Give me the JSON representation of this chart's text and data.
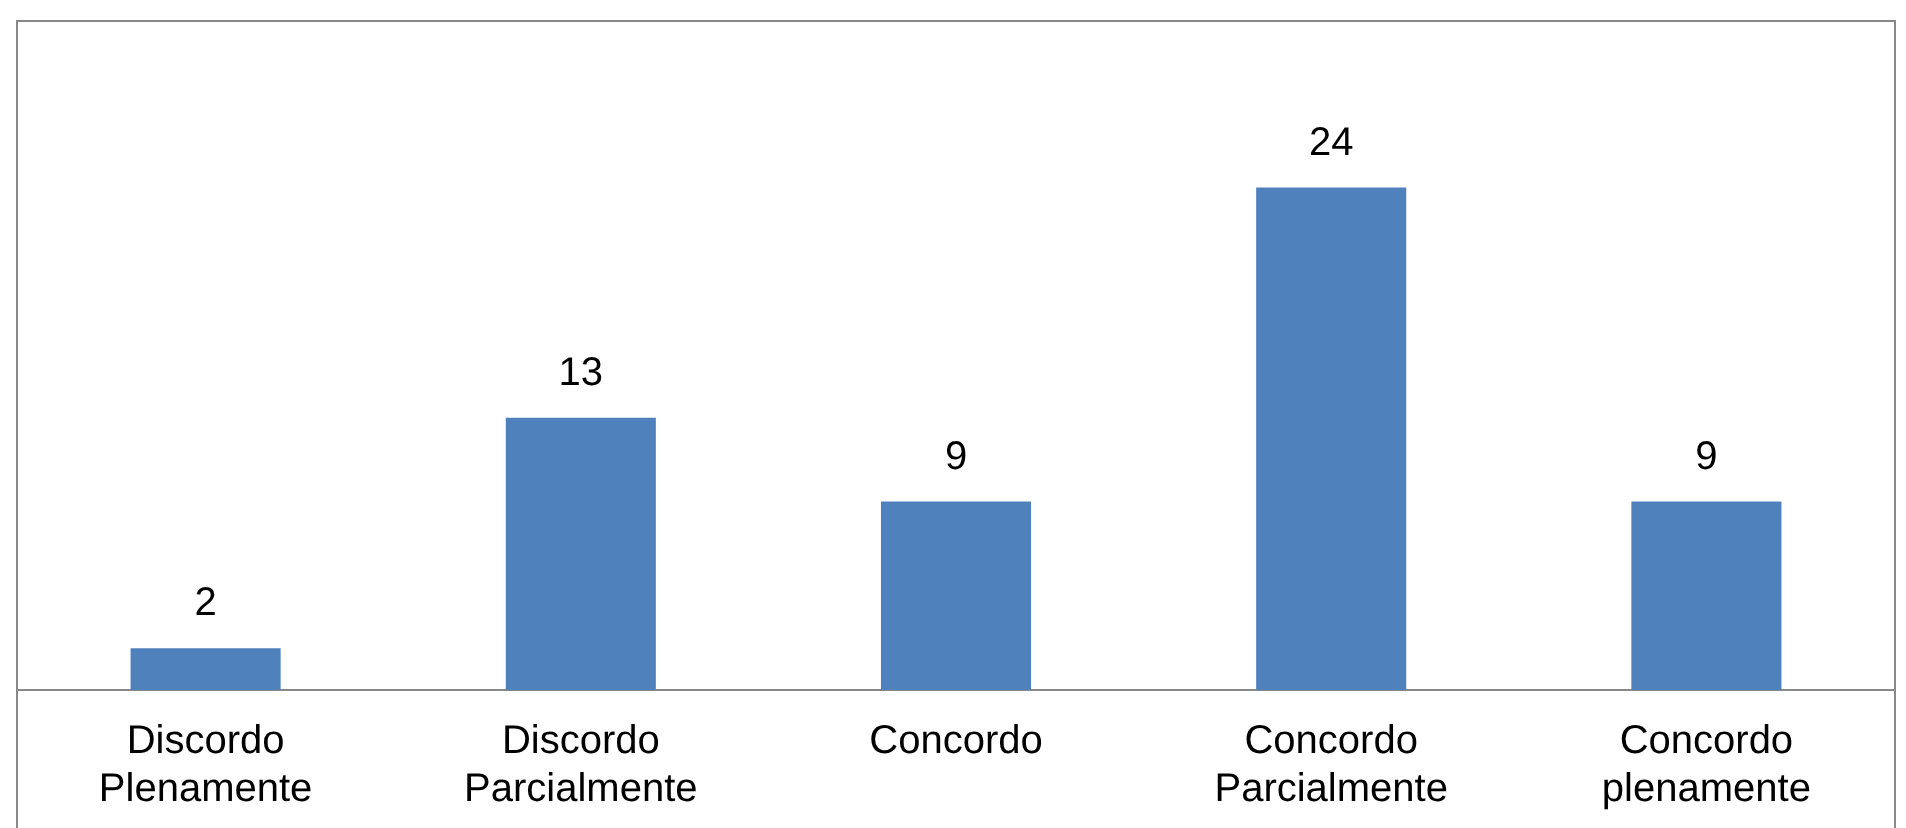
{
  "chart_data": {
    "type": "bar",
    "categories": [
      "Discordo Plenamente",
      "Discordo Parcialmente",
      "Concordo",
      "Concordo Parcialmente",
      "Concordo plenamente"
    ],
    "values": [
      2,
      13,
      9,
      24,
      9
    ],
    "color": "#4f81bd",
    "tick_labels": "x",
    "data_labels": true,
    "grid": false,
    "legend": false
  }
}
